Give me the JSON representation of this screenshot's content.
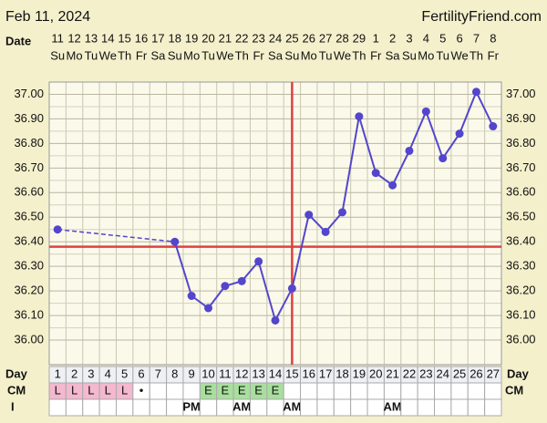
{
  "chart_data": {
    "type": "line",
    "title": "Feb 11, 2024",
    "site": "FertilityFriend.com",
    "date_label": "Date",
    "day_label": "Day",
    "cm_label": "CM",
    "intercourse_label": "I",
    "categories": [
      "11",
      "12",
      "13",
      "14",
      "15",
      "16",
      "17",
      "18",
      "19",
      "20",
      "21",
      "22",
      "23",
      "24",
      "25",
      "26",
      "27",
      "28",
      "29",
      "1",
      "2",
      "3",
      "4",
      "5",
      "6",
      "7",
      "8"
    ],
    "weekdays": [
      "Su",
      "Mo",
      "Tu",
      "We",
      "Th",
      "Fr",
      "Sa",
      "Su",
      "Mo",
      "Tu",
      "We",
      "Th",
      "Fr",
      "Sa",
      "Su",
      "Mo",
      "Tu",
      "We",
      "Th",
      "Fr",
      "Sa",
      "Su",
      "Mo",
      "Tu",
      "We",
      "Th",
      "Fr"
    ],
    "days": [
      1,
      2,
      3,
      4,
      5,
      6,
      7,
      8,
      9,
      10,
      11,
      12,
      13,
      14,
      15,
      16,
      17,
      18,
      19,
      20,
      21,
      22,
      23,
      24,
      25,
      26,
      27
    ],
    "series": [
      {
        "color": "#5346cc",
        "values": [
          36.45,
          null,
          null,
          null,
          null,
          null,
          null,
          36.4,
          36.18,
          36.13,
          36.22,
          36.24,
          36.32,
          36.08,
          36.21,
          36.51,
          36.44,
          36.52,
          36.91,
          36.68,
          36.63,
          36.77,
          36.93,
          36.74,
          36.84,
          37.01,
          36.87
        ]
      }
    ],
    "connect_gaps": "dashed",
    "cm": [
      "L",
      "L",
      "L",
      "L",
      "L",
      "•",
      null,
      null,
      null,
      "E",
      "E",
      "E",
      "E",
      "E",
      null,
      null,
      null,
      null,
      null,
      null,
      null,
      null,
      null,
      null,
      null,
      null,
      null
    ],
    "cm_fill": {
      "L": "#f4b8cf",
      "E": "#a9df9e"
    },
    "intercourse": [
      null,
      null,
      null,
      null,
      null,
      null,
      null,
      null,
      "PM",
      null,
      null,
      "AM",
      null,
      null,
      "AM",
      null,
      null,
      null,
      null,
      null,
      "AM",
      null,
      null,
      null,
      null,
      null,
      null
    ],
    "coverline": 36.38,
    "ovulation_day": 15,
    "marker_color": "#e04040",
    "ylim": [
      35.9,
      37.05
    ],
    "yticks": [
      {
        "value": 36.0,
        "label": "36.00"
      },
      {
        "value": 36.1,
        "label": "36.10"
      },
      {
        "value": 36.2,
        "label": "36.20"
      },
      {
        "value": 36.3,
        "label": "36.30"
      },
      {
        "value": 36.4,
        "label": "36.40"
      },
      {
        "value": 36.5,
        "label": "36.50"
      },
      {
        "value": 36.6,
        "label": "36.60"
      },
      {
        "value": 36.7,
        "label": "36.70"
      },
      {
        "value": 36.8,
        "label": "36.80"
      },
      {
        "value": 36.9,
        "label": "36.90"
      },
      {
        "value": 37.0,
        "label": "37.00"
      }
    ],
    "grid": true
  }
}
